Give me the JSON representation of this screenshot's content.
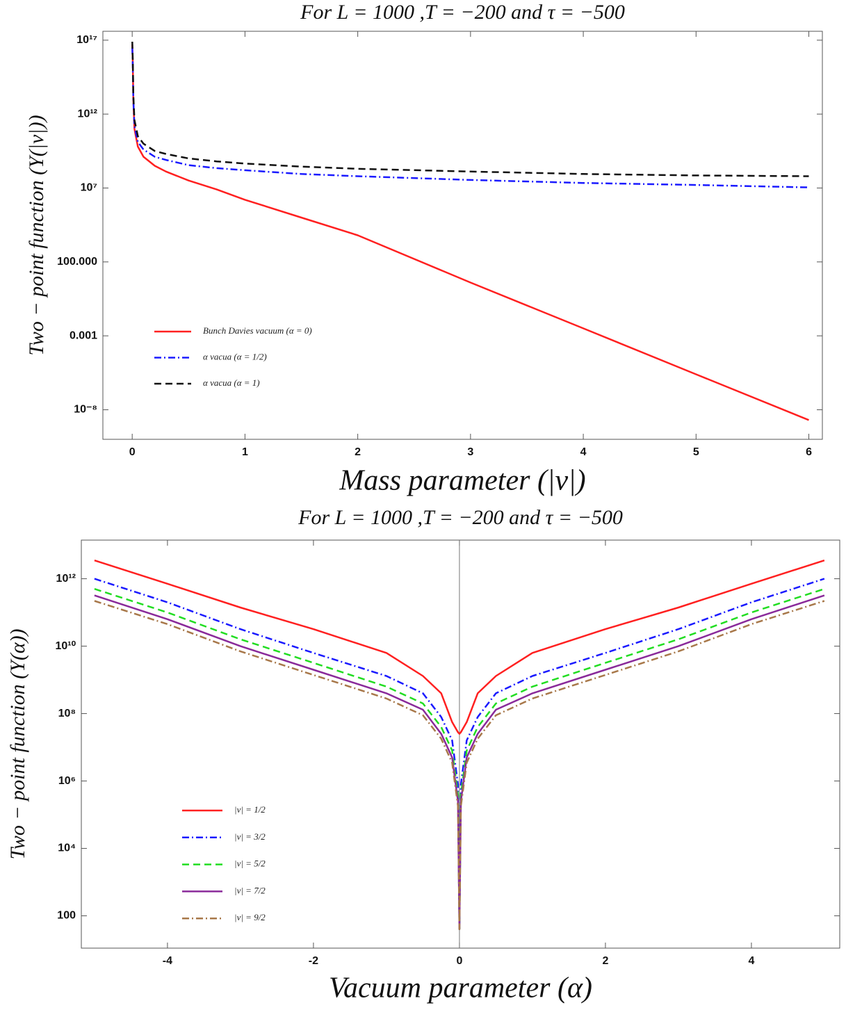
{
  "chart_data": [
    {
      "type": "line",
      "title": "For L = 1000 ,T = −200 and τ = −500",
      "x_label": "Mass parameter  (|ν|)",
      "y_label": "Two − point function (Y(|ν|))",
      "yscale": "log",
      "legend": "lower left",
      "xlim": [
        -0.26,
        6.12
      ],
      "ylim": [
        1e-10,
        4e+17
      ],
      "xticks": [
        0,
        1,
        2,
        3,
        4,
        5,
        6
      ],
      "yticks": [
        {
          "value": 1e+17,
          "label": "10¹⁷"
        },
        {
          "value": 1000000000000.0,
          "label": "10¹²"
        },
        {
          "value": 10000000.0,
          "label": "10⁷"
        },
        {
          "value": 100,
          "label": "100.000"
        },
        0.001,
        {
          "value": 1e-08,
          "label": "10⁻⁸"
        }
      ],
      "x": [
        0.001,
        0.005,
        0.01,
        0.02,
        0.05,
        0.1,
        0.2,
        0.3,
        0.5,
        0.75,
        1,
        1.5,
        2,
        3,
        4,
        5,
        6
      ],
      "series": [
        {
          "name": "Bunch Davies vacuum (α = 0)",
          "color": "#ff2020",
          "style": "solid",
          "values": [
            5e+16,
            3200000000000000.0,
            10000000000000.0,
            100000000000.0,
            6300000000.0,
            1300000000.0,
            320000000.0,
            130000000.0,
            32000000.0,
            7900000.0,
            1600000.0,
            100000.0,
            6300,
            4,
            0.0032,
            2.5e-06,
            2e-09
          ]
        },
        {
          "name": "α vacua (α = 1/2)",
          "color": "#1a1aff",
          "style": "dashdot",
          "values": [
            3.2e+16,
            2000000000000000.0,
            10000000000000.0,
            160000000000.0,
            13000000000.0,
            4000000000.0,
            1300000000.0,
            790000000.0,
            350000000.0,
            220000000.0,
            160000000.0,
            89000000.0,
            63000000.0,
            35000000.0,
            22000000.0,
            16000000.0,
            11000000.0
          ]
        },
        {
          "name": "α vacua (α = 1)",
          "color": "#111111",
          "style": "dashed",
          "values": [
            7.9e+16,
            5000000000000000.0,
            20000000000000.0,
            400000000000.0,
            32000000000.0,
            10000000000.0,
            3200000000.0,
            2000000000.0,
            1000000000.0,
            630000000.0,
            450000000.0,
            280000000.0,
            200000000.0,
            130000000.0,
            89000000.0,
            71000000.0,
            63000000.0
          ]
        }
      ]
    },
    {
      "type": "line",
      "title": "For L = 1000 ,T = −200 and τ = −500",
      "x_label": "Vacuum parameter  (α)",
      "y_label": "Two − point function (Y(α))",
      "yscale": "log",
      "legend": "lower left",
      "zero_line": true,
      "xlim": [
        -5.18,
        5.21
      ],
      "ylim": [
        11,
        14000000000000.0
      ],
      "xticks": [
        -4,
        -2,
        0,
        2,
        4
      ],
      "yticks": [
        {
          "value": 1000000000000.0,
          "label": "10¹²"
        },
        {
          "value": 10000000000.0,
          "label": "10¹⁰"
        },
        {
          "value": 100000000.0,
          "label": "10⁸"
        },
        {
          "value": 1000000.0,
          "label": "10⁶"
        },
        {
          "value": 10000.0,
          "label": "10⁴"
        },
        100
      ],
      "x": [
        -5,
        -4,
        -3,
        -2,
        -1,
        -0.5,
        -0.25,
        -0.1,
        -0.02,
        0,
        0.02,
        0.1,
        0.25,
        0.5,
        1,
        2,
        3,
        4,
        5
      ],
      "series": [
        {
          "name": "|ν| = 1/2",
          "color": "#ff2020",
          "style": "solid",
          "values": [
            3500000000000.0,
            710000000000.0,
            140000000000.0,
            32000000000.0,
            6300000000.0,
            1300000000.0,
            400000000.0,
            56000000.0,
            28000000.0,
            25000000.0,
            28000000.0,
            56000000.0,
            400000000.0,
            1300000000.0,
            6300000000.0,
            32000000000.0,
            140000000000.0,
            710000000000.0,
            3500000000000.0
          ]
        },
        {
          "name": "|ν| = 3/2",
          "color": "#1a1aff",
          "style": "dashdot",
          "values": [
            1000000000000.0,
            200000000000.0,
            32000000000.0,
            6300000000.0,
            1300000000.0,
            400000000.0,
            79000000.0,
            16000000.0,
            790000.0,
            40,
            790000.0,
            16000000.0,
            79000000.0,
            400000000.0,
            1300000000.0,
            6300000000.0,
            32000000000.0,
            200000000000.0,
            1000000000000.0
          ]
        },
        {
          "name": "|ν| = 5/2",
          "color": "#22dd22",
          "style": "dashed",
          "values": [
            500000000000.0,
            100000000000.0,
            16000000000.0,
            3200000000.0,
            630000000.0,
            200000000.0,
            40000000.0,
            8000000.0,
            400000.0,
            40,
            400000.0,
            8000000.0,
            40000000.0,
            200000000.0,
            630000000.0,
            3200000000.0,
            16000000000.0,
            100000000000.0,
            500000000000.0
          ]
        },
        {
          "name": "|ν| = 7/2",
          "color": "#8a2a9a",
          "style": "solid",
          "values": [
            320000000000.0,
            63000000000.0,
            10000000000.0,
            2000000000.0,
            400000000.0,
            130000000.0,
            25000000.0,
            5000000.0,
            250000.0,
            40,
            250000.0,
            5000000.0,
            25000000.0,
            130000000.0,
            400000000.0,
            2000000000.0,
            10000000000.0,
            63000000000.0,
            320000000000.0
          ]
        },
        {
          "name": "|ν| = 9/2",
          "color": "#a8784a",
          "style": "dashdot",
          "values": [
            220000000000.0,
            45000000000.0,
            7000000000.0,
            1400000000.0,
            280000000.0,
            89000000.0,
            18000000.0,
            3500000.0,
            180000.0,
            40,
            180000.0,
            3500000.0,
            18000000.0,
            89000000.0,
            280000000.0,
            1400000000.0,
            7000000000.0,
            45000000000.0,
            220000000000.0
          ]
        }
      ]
    }
  ]
}
